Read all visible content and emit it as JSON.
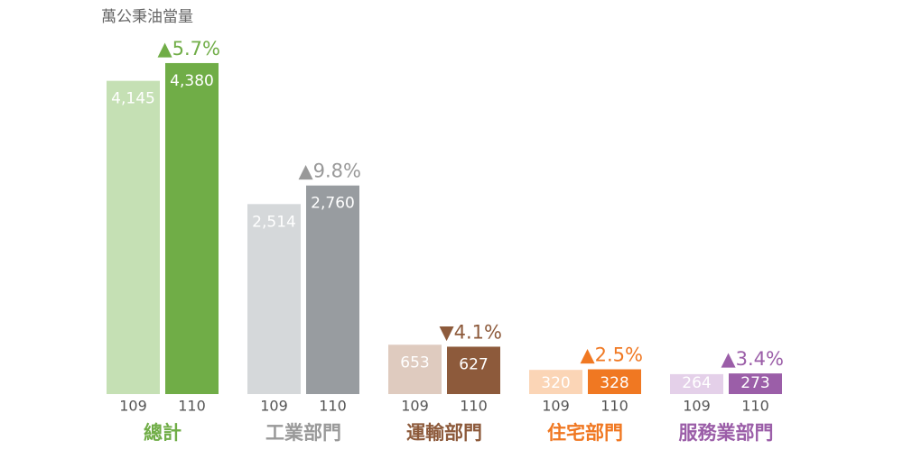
{
  "chart_data": {
    "type": "bar",
    "unit": "萬公秉油當量",
    "series_labels": [
      "109",
      "110"
    ],
    "groups": [
      {
        "name": "總計",
        "colors": [
          "#c5e0b4",
          "#70ad47"
        ],
        "text_color": "#70ad47",
        "values": [
          4145,
          4380
        ],
        "value_labels": [
          "4,145",
          "4,380"
        ],
        "change_label": "▲5.7%"
      },
      {
        "name": "工業部門",
        "colors": [
          "#d5d8da",
          "#989ca0"
        ],
        "text_color": "#999999",
        "values": [
          2514,
          2760
        ],
        "value_labels": [
          "2,514",
          "2,760"
        ],
        "change_label": "▲9.8%"
      },
      {
        "name": "運輸部門",
        "colors": [
          "#dfcbbf",
          "#8d5a3b"
        ],
        "text_color": "#8d5a3b",
        "values": [
          653,
          627
        ],
        "change_label": "▼4.1%"
      },
      {
        "name": "住宅部門",
        "colors": [
          "#fbd5b6",
          "#f07822"
        ],
        "text_color": "#f07822",
        "values": [
          320,
          328
        ],
        "change_label": "▲2.5%"
      },
      {
        "name": "服務業部門",
        "colors": [
          "#e4d0e9",
          "#9b5ea8"
        ],
        "text_color": "#9b5ea8",
        "values": [
          264,
          273
        ],
        "change_label": "▲3.4%"
      }
    ]
  }
}
